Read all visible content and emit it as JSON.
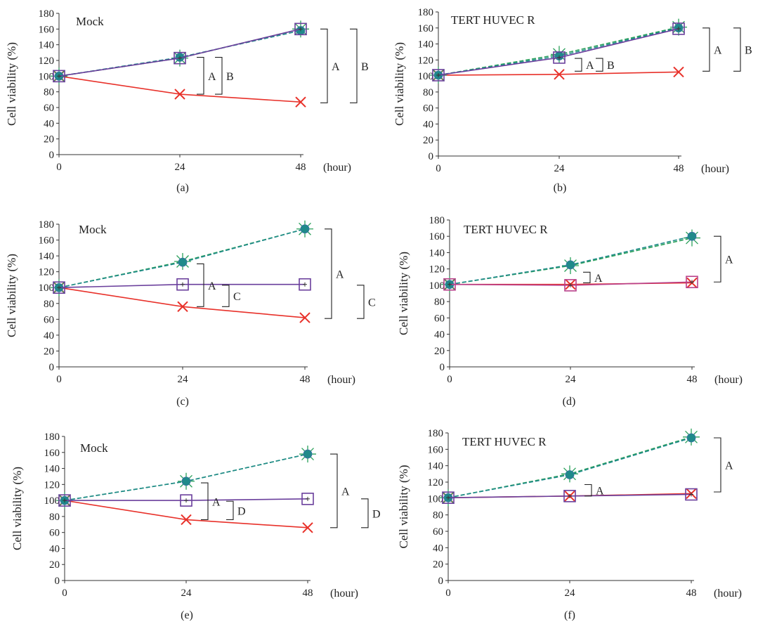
{
  "colors": {
    "red": "#e8312a",
    "purple": "#6a3f9c",
    "green": "#2aa05a",
    "teal": "#1f8a8a",
    "magenta": "#b8408a"
  },
  "chart_data": [
    {
      "id": "a",
      "type": "line",
      "panel_label": "(a)",
      "title": "Mock",
      "ylabel": "Cell viability (%)",
      "xlabel": "",
      "x_unit": "(hour)",
      "categories": [
        "0",
        "24",
        "48"
      ],
      "yticks": [
        0,
        20,
        40,
        60,
        80,
        100,
        120,
        140,
        160,
        180
      ],
      "ylim": [
        0,
        180
      ],
      "series": [
        {
          "values": [
            100,
            77,
            67
          ],
          "color": "#e8312a",
          "marker": "x",
          "dashed": false
        },
        {
          "values": [
            100,
            123,
            160
          ],
          "color": "#2aa05a",
          "marker": "star",
          "dashed": true
        },
        {
          "values": [
            100,
            124,
            158
          ],
          "color": "#1f8a8a",
          "marker": "dot",
          "dashed": true
        },
        {
          "values": [
            100,
            123,
            160
          ],
          "color": "#6a3f9c",
          "marker": "square",
          "dashed": false
        }
      ],
      "brackets": [
        {
          "label": "A",
          "ytop": 124,
          "ybot": 77,
          "x": 290,
          "open": "left"
        },
        {
          "label": "B",
          "ytop": 124,
          "ybot": 77,
          "x": 316,
          "open": "right"
        },
        {
          "label": "A",
          "ytop": 160,
          "ybot": 66,
          "x": 466,
          "open": "left"
        },
        {
          "label": "B",
          "ytop": 160,
          "ybot": 66,
          "x": 508,
          "open": "right"
        }
      ]
    },
    {
      "id": "b",
      "type": "line",
      "panel_label": "(b)",
      "title": "TERT HUVEC R",
      "ylabel": "Cell viability (%)",
      "xlabel": "",
      "x_unit": "(hour)",
      "categories": [
        "0",
        "24",
        "48"
      ],
      "yticks": [
        0,
        20,
        40,
        60,
        80,
        100,
        120,
        140,
        160,
        180
      ],
      "ylim": [
        0,
        180
      ],
      "series": [
        {
          "values": [
            101,
            102,
            105
          ],
          "color": "#e8312a",
          "marker": "x",
          "dashed": false
        },
        {
          "values": [
            101,
            127,
            161
          ],
          "color": "#2aa05a",
          "marker": "star",
          "dashed": true
        },
        {
          "values": [
            101,
            125,
            160
          ],
          "color": "#1f8a8a",
          "marker": "dot",
          "dashed": true
        },
        {
          "values": [
            101,
            123,
            159
          ],
          "color": "#6a3f9c",
          "marker": "square",
          "dashed": false
        }
      ],
      "brackets": [
        {
          "label": "A",
          "ytop": 122,
          "ybot": 106,
          "x": 828,
          "open": "left"
        },
        {
          "label": "B",
          "ytop": 122,
          "ybot": 106,
          "x": 858,
          "open": "right"
        },
        {
          "label": "A",
          "ytop": 160,
          "ybot": 106,
          "x": 1010,
          "open": "left"
        },
        {
          "label": "B",
          "ytop": 160,
          "ybot": 106,
          "x": 1054,
          "open": "right"
        }
      ]
    },
    {
      "id": "c",
      "type": "line",
      "panel_label": "(c)",
      "title": "Mock",
      "ylabel": "Cell viability (%)",
      "xlabel": "",
      "x_unit": "(hour)",
      "categories": [
        "0",
        "24",
        "48"
      ],
      "yticks": [
        0,
        20,
        40,
        60,
        80,
        100,
        120,
        140,
        160,
        180
      ],
      "ylim": [
        0,
        180
      ],
      "series": [
        {
          "values": [
            100,
            76,
            62
          ],
          "color": "#e8312a",
          "marker": "x",
          "dashed": false
        },
        {
          "values": [
            100,
            133,
            174
          ],
          "color": "#2aa05a",
          "marker": "star",
          "dashed": true
        },
        {
          "values": [
            100,
            132,
            174
          ],
          "color": "#1f8a8a",
          "marker": "dot",
          "dashed": true
        },
        {
          "values": [
            100,
            104,
            104
          ],
          "color": "#6a3f9c",
          "marker": "square",
          "dashed": false
        }
      ],
      "brackets": [
        {
          "label": "A",
          "ytop": 130,
          "ybot": 76,
          "x": 290,
          "open": "left"
        },
        {
          "label": "C",
          "ytop": 103,
          "ybot": 76,
          "x": 326,
          "open": "right"
        },
        {
          "label": "A",
          "ytop": 174,
          "ybot": 61,
          "x": 472,
          "open": "left"
        },
        {
          "label": "C",
          "ytop": 103,
          "ybot": 61,
          "x": 518,
          "open": "right"
        }
      ]
    },
    {
      "id": "d",
      "type": "line",
      "panel_label": "(d)",
      "title": "TERT HUVEC R",
      "ylabel": "Cell viability (%)",
      "xlabel": "",
      "x_unit": "(hour)",
      "categories": [
        "0",
        "24",
        "48"
      ],
      "yticks": [
        0,
        20,
        40,
        60,
        80,
        100,
        120,
        140,
        160,
        180
      ],
      "ylim": [
        0,
        180
      ],
      "series": [
        {
          "values": [
            101,
            101,
            103
          ],
          "color": "#e8312a",
          "marker": "x",
          "dashed": false
        },
        {
          "values": [
            101,
            124,
            158
          ],
          "color": "#2aa05a",
          "marker": "star",
          "dashed": true
        },
        {
          "values": [
            101,
            125,
            160
          ],
          "color": "#1f8a8a",
          "marker": "dot",
          "dashed": true
        },
        {
          "values": [
            101,
            100,
            104
          ],
          "color": "#b8408a",
          "marker": "square",
          "dashed": false
        }
      ],
      "brackets": [
        {
          "label": "A",
          "ytop": 116,
          "ybot": 103,
          "x": 840,
          "open": "left"
        },
        {
          "label": "A",
          "ytop": 160,
          "ybot": 104,
          "x": 1026,
          "open": "left"
        }
      ]
    },
    {
      "id": "e",
      "type": "line",
      "panel_label": "(e)",
      "title": "Mock",
      "ylabel": "Cell viability (%)",
      "xlabel": "",
      "x_unit": "(hour)",
      "categories": [
        "0",
        "24",
        "48"
      ],
      "yticks": [
        0,
        20,
        40,
        60,
        80,
        100,
        120,
        140,
        160,
        180
      ],
      "ylim": [
        0,
        180
      ],
      "series": [
        {
          "values": [
            100,
            76,
            66
          ],
          "color": "#e8312a",
          "marker": "x",
          "dashed": false
        },
        {
          "values": [
            100,
            124,
            158
          ],
          "color": "#2aa05a",
          "marker": "star",
          "dashed": true
        },
        {
          "values": [
            100,
            124,
            158
          ],
          "color": "#1f8a8a",
          "marker": "dot",
          "dashed": true
        },
        {
          "values": [
            100,
            100,
            102
          ],
          "color": "#6a3f9c",
          "marker": "square",
          "dashed": false
        }
      ],
      "brackets": [
        {
          "label": "A",
          "ytop": 122,
          "ybot": 76,
          "x": 296,
          "open": "left"
        },
        {
          "label": "D",
          "ytop": 99,
          "ybot": 76,
          "x": 332,
          "open": "right"
        },
        {
          "label": "A",
          "ytop": 158,
          "ybot": 66,
          "x": 480,
          "open": "left"
        },
        {
          "label": "D",
          "ytop": 102,
          "ybot": 66,
          "x": 524,
          "open": "right"
        }
      ]
    },
    {
      "id": "f",
      "type": "line",
      "panel_label": "(f)",
      "title": "TERT HUVEC R",
      "ylabel": "Cell viability (%)",
      "xlabel": "",
      "x_unit": "(hour)",
      "categories": [
        "0",
        "24",
        "48"
      ],
      "yticks": [
        0,
        20,
        40,
        60,
        80,
        100,
        120,
        140,
        160,
        180
      ],
      "ylim": [
        0,
        180
      ],
      "series": [
        {
          "values": [
            101,
            103,
            106
          ],
          "color": "#e8312a",
          "marker": "x",
          "dashed": false
        },
        {
          "values": [
            101,
            130,
            175
          ],
          "color": "#2aa05a",
          "marker": "star",
          "dashed": true
        },
        {
          "values": [
            101,
            129,
            174
          ],
          "color": "#1f8a8a",
          "marker": "dot",
          "dashed": true
        },
        {
          "values": [
            101,
            103,
            105
          ],
          "color": "#6a3f9c",
          "marker": "square",
          "dashed": false
        }
      ],
      "brackets": [
        {
          "label": "A",
          "ytop": 117,
          "ybot": 103,
          "x": 842,
          "open": "left"
        },
        {
          "label": "A",
          "ytop": 174,
          "ybot": 108,
          "x": 1026,
          "open": "left"
        }
      ]
    }
  ]
}
